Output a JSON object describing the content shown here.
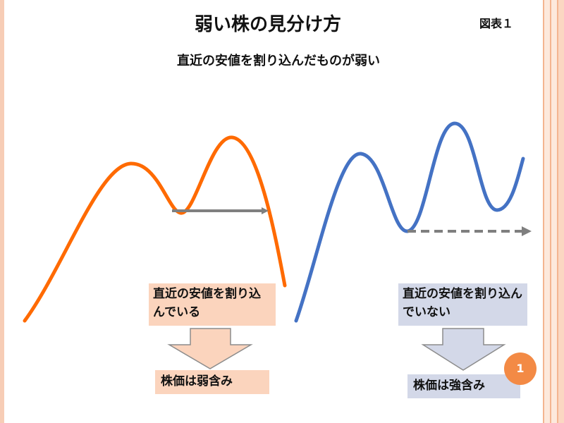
{
  "title": "弱い株の見分け方",
  "figure_label": "図表１",
  "subtitle": "直近の安値を割り込んだものが弱い",
  "weak": {
    "label": "直近の安値を割り込んでいる",
    "result": "株価は弱含み",
    "line_color": "#ff6a00",
    "arrow_color": "#7f7f7f",
    "box_color": "#fbd4bd"
  },
  "strong": {
    "label": "直近の安値を割り込んでいない",
    "result": "株価は強含み",
    "line_color": "#4472c4",
    "arrow_color": "#7f7f7f",
    "box_color": "#d3d8e8"
  },
  "page_number": "1"
}
